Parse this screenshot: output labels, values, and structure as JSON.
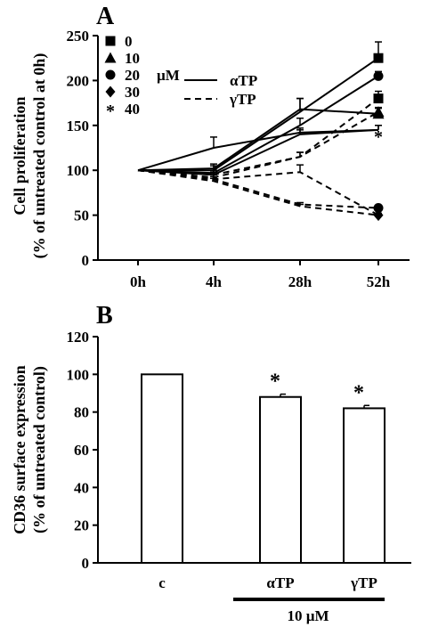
{
  "chart_data": [
    {
      "panel_label": "A",
      "type": "line",
      "ylabel": "Cell proliferation",
      "ylabel2": "(% of untreated control at 0h)",
      "ylim": [
        0,
        250
      ],
      "yticks": [
        0,
        50,
        100,
        150,
        200,
        250
      ],
      "categories": [
        "0h",
        "4h",
        "28h",
        "52h"
      ],
      "legend_doses": {
        "unit": "µM",
        "items": [
          {
            "marker": "square",
            "label": "0"
          },
          {
            "marker": "triangle",
            "label": "10"
          },
          {
            "marker": "circle",
            "label": "20"
          },
          {
            "marker": "diamond",
            "label": "30"
          },
          {
            "marker": "star",
            "label": "40"
          }
        ]
      },
      "legend_lines": [
        {
          "style": "solid",
          "label": "αTP"
        },
        {
          "style": "dashed",
          "label": "γTP"
        }
      ],
      "series": [
        {
          "compound": "αTP",
          "dose": "0",
          "values": [
            100,
            100,
            165,
            225
          ],
          "err": [
            0,
            5,
            15,
            18
          ],
          "marker": "square"
        },
        {
          "compound": "αTP",
          "dose": "10",
          "values": [
            100,
            102,
            168,
            163
          ],
          "err": [
            0,
            5,
            12,
            6
          ],
          "marker": "triangle"
        },
        {
          "compound": "αTP",
          "dose": "20",
          "values": [
            100,
            97,
            150,
            205
          ],
          "err": [
            0,
            5,
            8,
            5
          ],
          "marker": "circle"
        },
        {
          "compound": "αTP",
          "dose": "30",
          "values": [
            100,
            95,
            140,
            145
          ],
          "err": [
            0,
            5,
            5,
            5
          ],
          "marker": "none"
        },
        {
          "compound": "αTP",
          "dose": "40",
          "values": [
            100,
            125,
            142,
            145
          ],
          "err": [
            0,
            12,
            5,
            5
          ],
          "marker": "none"
        },
        {
          "compound": "γTP",
          "dose": "0",
          "values": [
            100,
            95,
            115,
            180
          ],
          "err": [
            0,
            3,
            5,
            8
          ],
          "marker": "square"
        },
        {
          "compound": "γTP",
          "dose": "10",
          "values": [
            100,
            92,
            115,
            165
          ],
          "err": [
            0,
            3,
            5,
            5
          ],
          "marker": "triangle"
        },
        {
          "compound": "γTP",
          "dose": "20",
          "values": [
            100,
            90,
            62,
            58
          ],
          "err": [
            0,
            3,
            2,
            2
          ],
          "marker": "circle"
        },
        {
          "compound": "γTP",
          "dose": "30",
          "values": [
            100,
            88,
            60,
            50
          ],
          "err": [
            0,
            3,
            2,
            2
          ],
          "marker": "diamond"
        },
        {
          "compound": "γTP",
          "dose": "40",
          "values": [
            100,
            90,
            98,
            50
          ],
          "err": [
            0,
            3,
            8,
            2
          ],
          "marker": "star"
        }
      ],
      "annotations": [
        {
          "text": "*",
          "category": "52h",
          "value": 145
        }
      ]
    },
    {
      "panel_label": "B",
      "type": "bar",
      "ylabel": "CD36 surface expression",
      "ylabel2": "(% of untreated control)",
      "ylim": [
        0,
        120
      ],
      "yticks": [
        0,
        20,
        40,
        60,
        80,
        100,
        120
      ],
      "categories": [
        "c",
        "αTP",
        "γTP"
      ],
      "values": [
        100,
        88,
        82
      ],
      "err": [
        0,
        1.5,
        1.5
      ],
      "significance": [
        "",
        "*",
        "*"
      ],
      "group_label": "10 µM"
    }
  ]
}
